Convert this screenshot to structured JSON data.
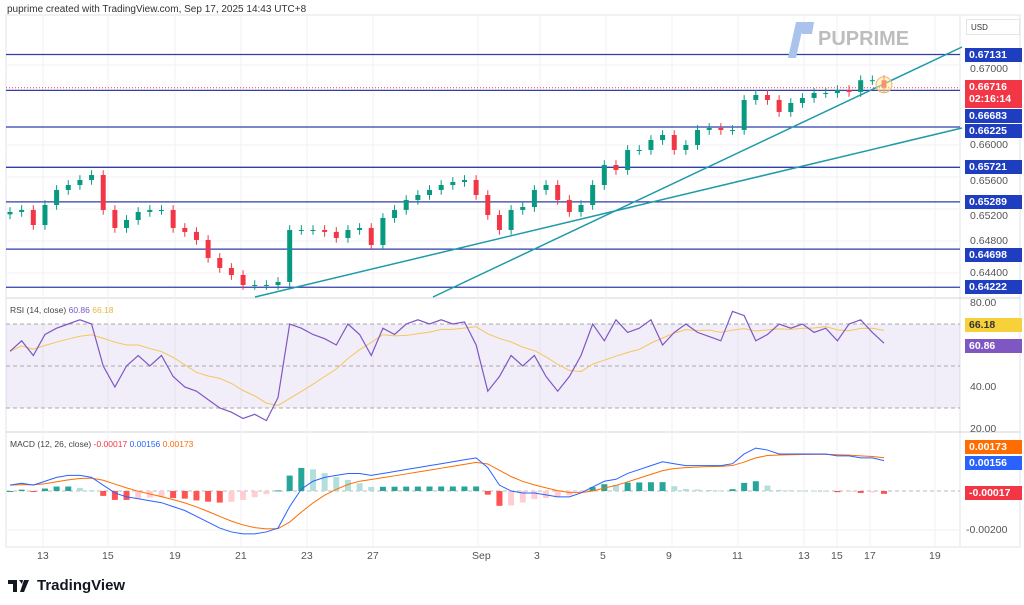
{
  "header": {
    "caption": "puprime created with TradingView.com, Sep 17, 2025 14:43 UTC+8"
  },
  "brand": {
    "name": "PUPRIME"
  },
  "footer": {
    "logo": "TradingView"
  },
  "colors": {
    "up": "#089981",
    "down": "#f23645",
    "level": "#2f3eab",
    "trend": "#1e9aa8",
    "rsi": "#7e57c2",
    "rsi_ma": "#f4c65a",
    "macd": "#2962ff",
    "signal": "#ff6d00"
  },
  "chart_data": {
    "type": "candlestick",
    "symbol_currency": "USD",
    "price_ticks": [
      "0.67000",
      "0.66000",
      "0.65600",
      "0.65200",
      "0.64800",
      "0.64400"
    ],
    "levels": [
      {
        "label": "0.67131",
        "value": 0.67131
      },
      {
        "label": "0.66683",
        "value": 0.66683
      },
      {
        "label": "0.66225",
        "value": 0.66225
      },
      {
        "label": "0.65721",
        "value": 0.65721
      },
      {
        "label": "0.65289",
        "value": 0.65289
      },
      {
        "label": "0.64698",
        "value": 0.64698
      },
      {
        "label": "0.64222",
        "value": 0.64222
      }
    ],
    "top_level": 0.6856,
    "current_price": {
      "label": "0.66716",
      "countdown": "02:16:14",
      "value": 0.66716
    },
    "x_ticks": [
      "13",
      "15",
      "19",
      "21",
      "23",
      "27",
      "Sep",
      "3",
      "5",
      "9",
      "11",
      "13",
      "15",
      "17",
      "19"
    ],
    "closes": [
      0.65163,
      0.65188,
      0.65,
      0.6525,
      0.65438,
      0.655,
      0.65563,
      0.65625,
      0.65188,
      0.64963,
      0.65063,
      0.65163,
      0.65188,
      0.65188,
      0.64963,
      0.64913,
      0.64813,
      0.64588,
      0.64463,
      0.64375,
      0.6425,
      0.6425,
      0.6425,
      0.64288,
      0.64938,
      0.64938,
      0.64938,
      0.64913,
      0.64838,
      0.64938,
      0.64963,
      0.6475,
      0.65088,
      0.65188,
      0.65313,
      0.65375,
      0.65438,
      0.655,
      0.65538,
      0.65563,
      0.65375,
      0.65125,
      0.64938,
      0.65188,
      0.65225,
      0.65438,
      0.655,
      0.65313,
      0.65163,
      0.6525,
      0.655,
      0.6575,
      0.65688,
      0.65938,
      0.65938,
      0.66063,
      0.66125,
      0.65938,
      0.66,
      0.66188,
      0.66213,
      0.66188,
      0.66188,
      0.66563,
      0.66625,
      0.66563,
      0.66413,
      0.66525,
      0.66588,
      0.6665,
      0.6665,
      0.66688,
      0.66663,
      0.6681,
      0.6681,
      0.66716
    ],
    "rsi": {
      "title": "RSI (14, close)",
      "value": "60.86",
      "ma_value": "66.18",
      "ticks": [
        "80.00",
        "40.00",
        "20.00"
      ],
      "values": [
        57,
        62,
        55,
        65,
        68,
        70,
        72,
        70,
        50,
        40,
        50,
        55,
        50,
        55,
        45,
        40,
        38,
        34,
        30,
        28,
        25,
        27,
        24,
        35,
        70,
        68,
        65,
        63,
        60,
        70,
        65,
        55,
        68,
        65,
        70,
        72,
        70,
        72,
        70,
        71,
        60,
        38,
        45,
        55,
        50,
        55,
        45,
        38,
        45,
        55,
        70,
        62,
        72,
        66,
        68,
        72,
        60,
        66,
        70,
        66,
        64,
        62,
        76,
        74,
        62,
        65,
        70,
        68,
        70,
        66,
        68,
        62,
        70,
        72,
        66,
        60.86
      ]
    },
    "macd": {
      "title": "MACD (12, 26, close)",
      "hist": "-0.00017",
      "macd": "0.00156",
      "signal": "0.00173",
      "ticks": [
        "-0.00200"
      ],
      "values": [
        0.0003,
        0.0004,
        0.0003,
        0.0005,
        0.0007,
        0.0008,
        0.0008,
        0.0007,
        0.0003,
        -0.0001,
        -0.0003,
        -0.0004,
        -0.0005,
        -0.0006,
        -0.0008,
        -0.001,
        -0.0013,
        -0.0016,
        -0.0019,
        -0.0021,
        -0.0022,
        -0.0022,
        -0.0021,
        -0.0019,
        -0.0008,
        0.0001,
        0.0005,
        0.0007,
        0.0008,
        0.0009,
        0.0009,
        0.0008,
        0.0009,
        0.001,
        0.0011,
        0.0012,
        0.0013,
        0.0014,
        0.0015,
        0.0016,
        0.0017,
        0.0012,
        0.0003,
        0.0,
        -0.0001,
        -0.0001,
        -0.0002,
        -0.0003,
        -0.0003,
        -0.0001,
        0.0002,
        0.0005,
        0.0006,
        0.0009,
        0.0011,
        0.0013,
        0.0015,
        0.0014,
        0.0013,
        0.0013,
        0.0013,
        0.0013,
        0.0014,
        0.0019,
        0.0022,
        0.0021,
        0.0019,
        0.0019,
        0.0019,
        0.0019,
        0.0019,
        0.0018,
        0.0018,
        0.0017,
        0.0017,
        0.00156
      ]
    }
  }
}
